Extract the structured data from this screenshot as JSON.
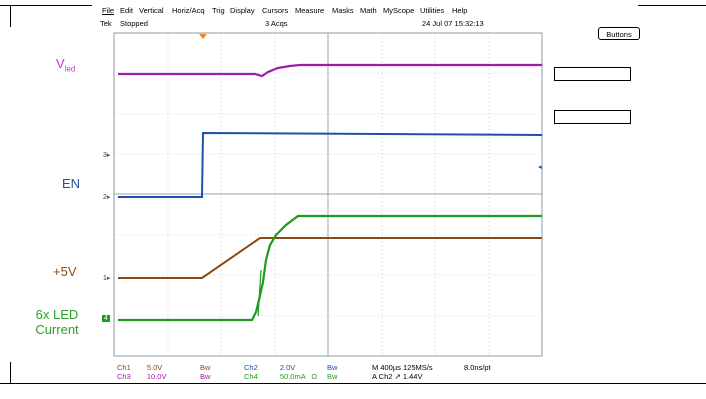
{
  "menu": {
    "items": [
      "File",
      "Edit",
      "Vertical",
      "Horiz/Acq",
      "Trig",
      "Display",
      "Cursors",
      "Measure",
      "Masks",
      "Math",
      "MyScope",
      "Utilities",
      "Help"
    ]
  },
  "status": {
    "brand": "Tek",
    "run_state": "Stopped",
    "acqs": "3 Acqs",
    "datetime": "24 Jul 07 15:32:13"
  },
  "buttons_label": "Buttons",
  "traces": {
    "vled": {
      "label_main": "V",
      "label_sub": "led",
      "color": "#cc33cc"
    },
    "en": {
      "label": "EN",
      "color": "#1f4fa8"
    },
    "p5v": {
      "label": "+5V",
      "color": "#8b4a14"
    },
    "led_current": {
      "label_line1": "6x LED",
      "label_line2": "Current",
      "color": "#2e9d2e"
    }
  },
  "markers": {
    "ch3": "3",
    "ch2": "2",
    "ch1": "1",
    "ch4": "4"
  },
  "readouts": {
    "ch1": "Ch1",
    "ch1_scale": "5.0V",
    "ch1_bw": "Bw",
    "ch2": "Ch2",
    "ch2_scale": "2.0V",
    "ch2_bw": "Bw",
    "ch3": "Ch3",
    "ch3_scale": "10.0V",
    "ch3_bw": "Bw",
    "ch4": "Ch4",
    "ch4_scale": "50.0mA",
    "ch4_omega": "Ω",
    "ch4_bw": "Bw",
    "timebase": "M 400µs  125MS/s",
    "pt": "8.0ns/pt",
    "trigger": "A  Ch2  ↗  1.44V"
  },
  "colors": {
    "grid": "#9aa8b8",
    "frame": "#000000"
  }
}
